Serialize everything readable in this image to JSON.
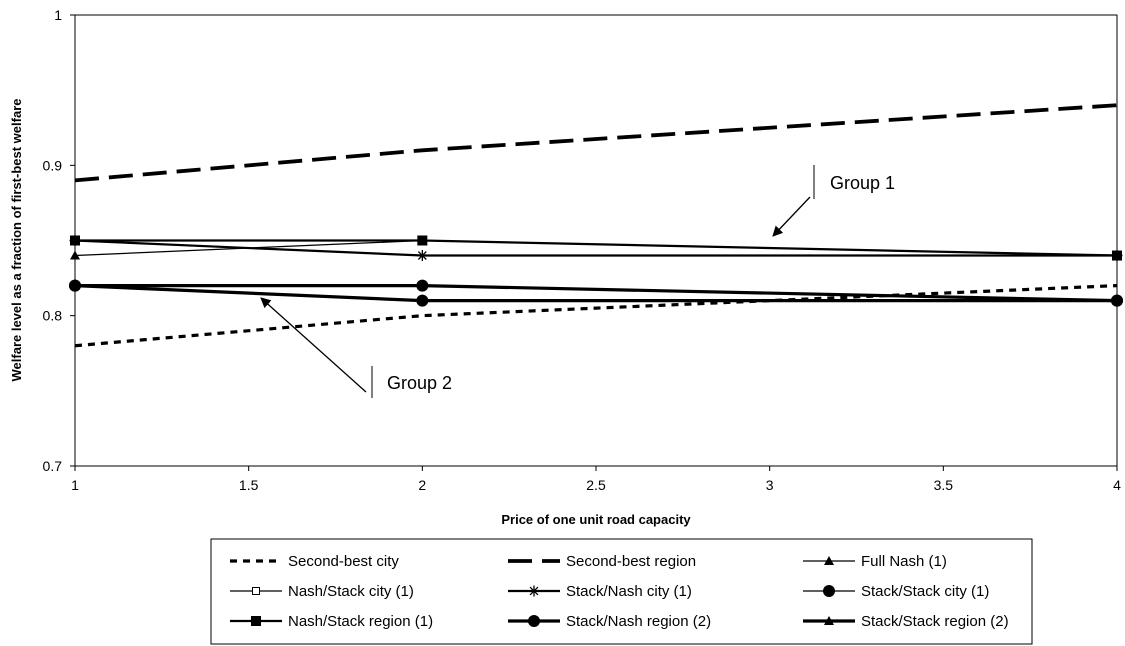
{
  "chart_data": {
    "type": "line",
    "title": "",
    "xlabel": "Price of one unit road capacity",
    "ylabel": "Welfare level as a fraction of first-best welfare",
    "xlim": [
      1,
      4
    ],
    "ylim": [
      0.7,
      1
    ],
    "xticks": [
      1,
      1.5,
      2,
      2.5,
      3,
      3.5,
      4
    ],
    "xtick_labels": [
      "1",
      "1.5",
      "2",
      "2.5",
      "3",
      "3.5",
      "4"
    ],
    "yticks": [
      0.7,
      0.8,
      0.9,
      1
    ],
    "ytick_labels": [
      "0.7",
      "0.8",
      "0.9",
      "1"
    ],
    "grid": false,
    "legend_position": "bottom",
    "series": [
      {
        "name": "Second-best city",
        "style": "dashed",
        "marker": "none",
        "width": "thick",
        "x": [
          1,
          2,
          4
        ],
        "y": [
          0.78,
          0.8,
          0.82
        ]
      },
      {
        "name": "Second-best region",
        "style": "longdash",
        "marker": "none",
        "width": "thicker",
        "x": [
          1,
          2,
          4
        ],
        "y": [
          0.89,
          0.91,
          0.94
        ]
      },
      {
        "name": "Full Nash (1)",
        "style": "solid",
        "marker": "triangle",
        "width": "thin",
        "x": [
          1,
          2,
          4
        ],
        "y": [
          0.84,
          0.85,
          0.84
        ]
      },
      {
        "name": "Nash/Stack city (1)",
        "style": "solid",
        "marker": "square-open",
        "width": "thin",
        "x": [
          1,
          2,
          4
        ],
        "y": [
          0.85,
          0.85,
          0.84
        ]
      },
      {
        "name": "Stack/Nash city (1)",
        "style": "solid",
        "marker": "star",
        "width": "medium",
        "x": [
          1,
          2,
          4
        ],
        "y": [
          0.85,
          0.84,
          0.84
        ]
      },
      {
        "name": "Stack/Stack city (1)",
        "style": "solid",
        "marker": "circle",
        "width": "thin",
        "x": [
          1,
          2,
          4
        ],
        "y": [
          0.82,
          0.82,
          0.81
        ]
      },
      {
        "name": "Nash/Stack region (1)",
        "style": "solid",
        "marker": "square",
        "width": "medium",
        "x": [
          1,
          2,
          4
        ],
        "y": [
          0.85,
          0.85,
          0.84
        ]
      },
      {
        "name": "Stack/Nash region (2)",
        "style": "solid",
        "marker": "circle",
        "width": "thick",
        "x": [
          1,
          2,
          4
        ],
        "y": [
          0.82,
          0.81,
          0.81
        ]
      },
      {
        "name": "Stack/Stack region (2)",
        "style": "solid",
        "marker": "triangle",
        "width": "thick",
        "x": [
          1,
          2,
          4
        ],
        "y": [
          0.82,
          0.82,
          0.81
        ]
      }
    ],
    "annotations": [
      {
        "text": "Group 1",
        "points_to": {
          "x": 3.0,
          "y": 0.843
        }
      },
      {
        "text": "Group 2",
        "points_to": {
          "x": 1.55,
          "y": 0.812
        }
      }
    ]
  }
}
